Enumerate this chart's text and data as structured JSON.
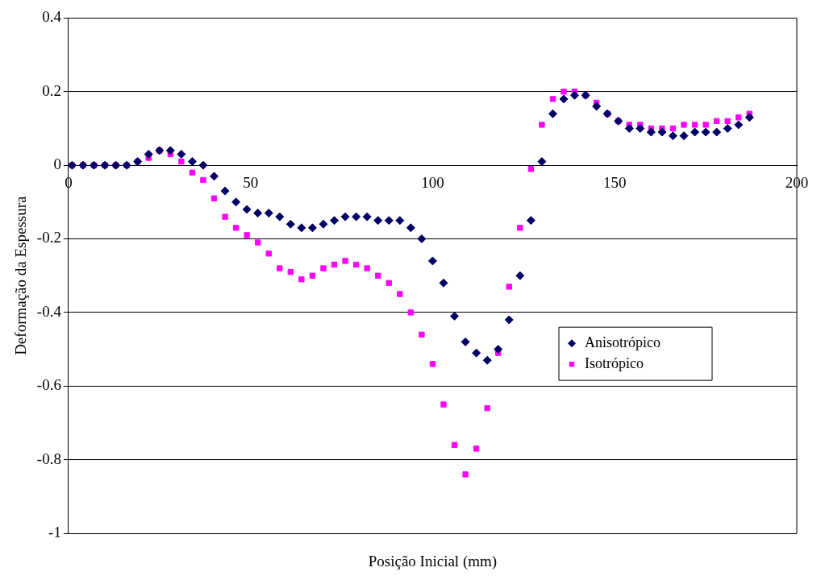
{
  "chart_data": {
    "type": "scatter",
    "xlabel": "Posição Inicial (mm)",
    "ylabel": "Deformação da Espessura",
    "x": [
      1,
      4,
      7,
      10,
      13,
      16,
      19,
      22,
      25,
      28,
      31,
      34,
      37,
      40,
      43,
      46,
      49,
      52,
      55,
      58,
      61,
      64,
      67,
      70,
      73,
      76,
      79,
      82,
      85,
      88,
      91,
      94,
      97,
      100,
      103,
      106,
      109,
      112,
      115,
      118,
      121,
      124,
      127,
      130,
      133,
      136,
      139,
      142,
      145,
      148,
      151,
      154,
      157,
      160,
      163,
      166,
      169,
      172,
      175,
      178,
      181,
      184,
      187
    ],
    "series": [
      {
        "name": "Anisotrópico",
        "color": "#000066",
        "marker": "diamond",
        "values": [
          0,
          0,
          0,
          0,
          0,
          0,
          0.01,
          0.03,
          0.04,
          0.04,
          0.03,
          0.01,
          0,
          -0.03,
          -0.07,
          -0.1,
          -0.12,
          -0.13,
          -0.13,
          -0.14,
          -0.16,
          -0.17,
          -0.17,
          -0.16,
          -0.15,
          -0.14,
          -0.14,
          -0.14,
          -0.15,
          -0.15,
          -0.15,
          -0.17,
          -0.2,
          -0.26,
          -0.32,
          -0.41,
          -0.48,
          -0.51,
          -0.53,
          -0.5,
          -0.42,
          -0.3,
          -0.15,
          0.01,
          0.14,
          0.18,
          0.19,
          0.19,
          0.16,
          0.14,
          0.12,
          0.1,
          0.1,
          0.09,
          0.09,
          0.08,
          0.08,
          0.09,
          0.09,
          0.09,
          0.1,
          0.11,
          0.13
        ]
      },
      {
        "name": "Isotrópico",
        "color": "#ff00ff",
        "marker": "square",
        "values": [
          0,
          0,
          0,
          0,
          0,
          0,
          0.01,
          0.02,
          0.04,
          0.03,
          0.01,
          -0.02,
          -0.04,
          -0.09,
          -0.14,
          -0.17,
          -0.19,
          -0.21,
          -0.24,
          -0.28,
          -0.29,
          -0.31,
          -0.3,
          -0.28,
          -0.27,
          -0.26,
          -0.27,
          -0.28,
          -0.3,
          -0.32,
          -0.35,
          -0.4,
          -0.46,
          -0.54,
          -0.65,
          -0.76,
          -0.84,
          -0.77,
          -0.66,
          -0.51,
          -0.33,
          -0.17,
          -0.01,
          0.11,
          0.18,
          0.2,
          0.2,
          0.19,
          0.17,
          0.14,
          0.12,
          0.11,
          0.11,
          0.1,
          0.1,
          0.1,
          0.11,
          0.11,
          0.11,
          0.12,
          0.12,
          0.13,
          0.14
        ]
      }
    ],
    "xlim": [
      0,
      200
    ],
    "xticks": [
      0,
      50,
      100,
      150,
      200
    ],
    "ylim": [
      -1,
      0.4
    ],
    "yticks": [
      -1,
      -0.8,
      -0.6,
      -0.4,
      -0.2,
      0,
      0.2,
      0.4
    ],
    "grid": "y",
    "legend": "right"
  }
}
